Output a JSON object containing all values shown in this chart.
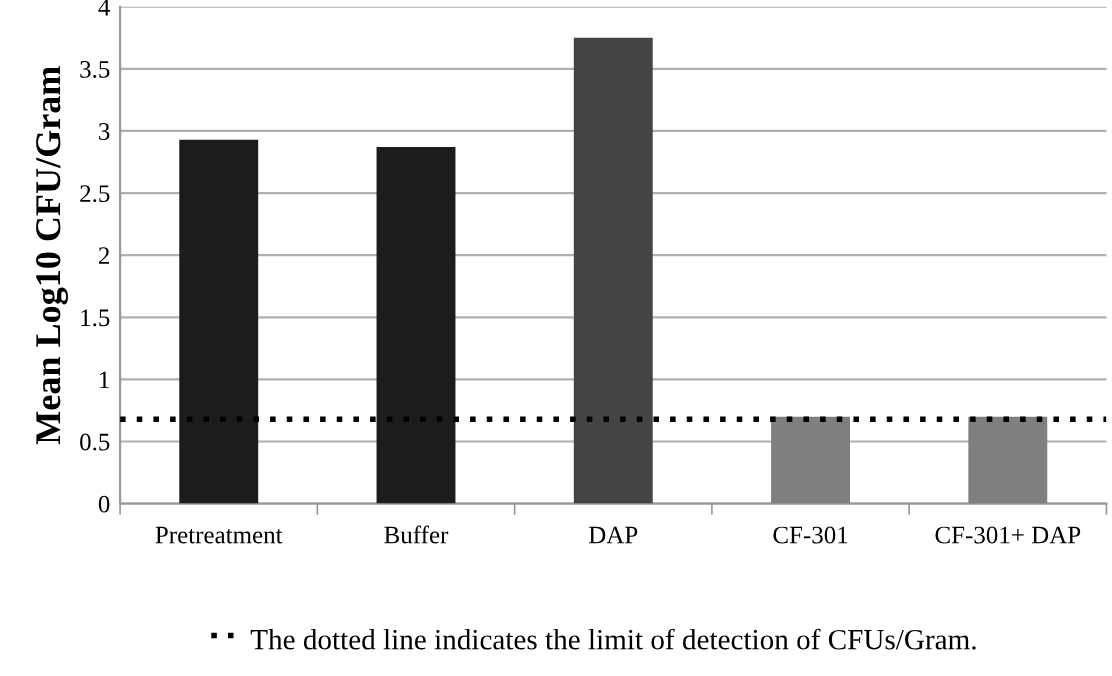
{
  "chart_data": {
    "type": "bar",
    "ylabel": "Mean Log10 CFU/Gram",
    "categories": [
      "Pretreatment",
      "Buffer",
      "DAP",
      "CF-301",
      "CF-301+ DAP"
    ],
    "values": [
      2.93,
      2.87,
      3.75,
      0.7,
      0.7
    ],
    "colors": [
      "#1c1c1c",
      "#1c1c1c",
      "#444444",
      "#7f7f7f",
      "#7f7f7f"
    ],
    "ylim": [
      0,
      4
    ],
    "yticks": [
      0,
      0.5,
      1,
      1.5,
      2,
      2.5,
      3,
      3.5,
      4
    ],
    "grid": "y",
    "ref_lines": [
      {
        "axis": "y",
        "value": 0.68,
        "color": "#000000",
        "line_style": "dotted"
      }
    ],
    "annotations": [
      "The dotted line indicates the limit of detection of CFUs/Gram."
    ]
  }
}
